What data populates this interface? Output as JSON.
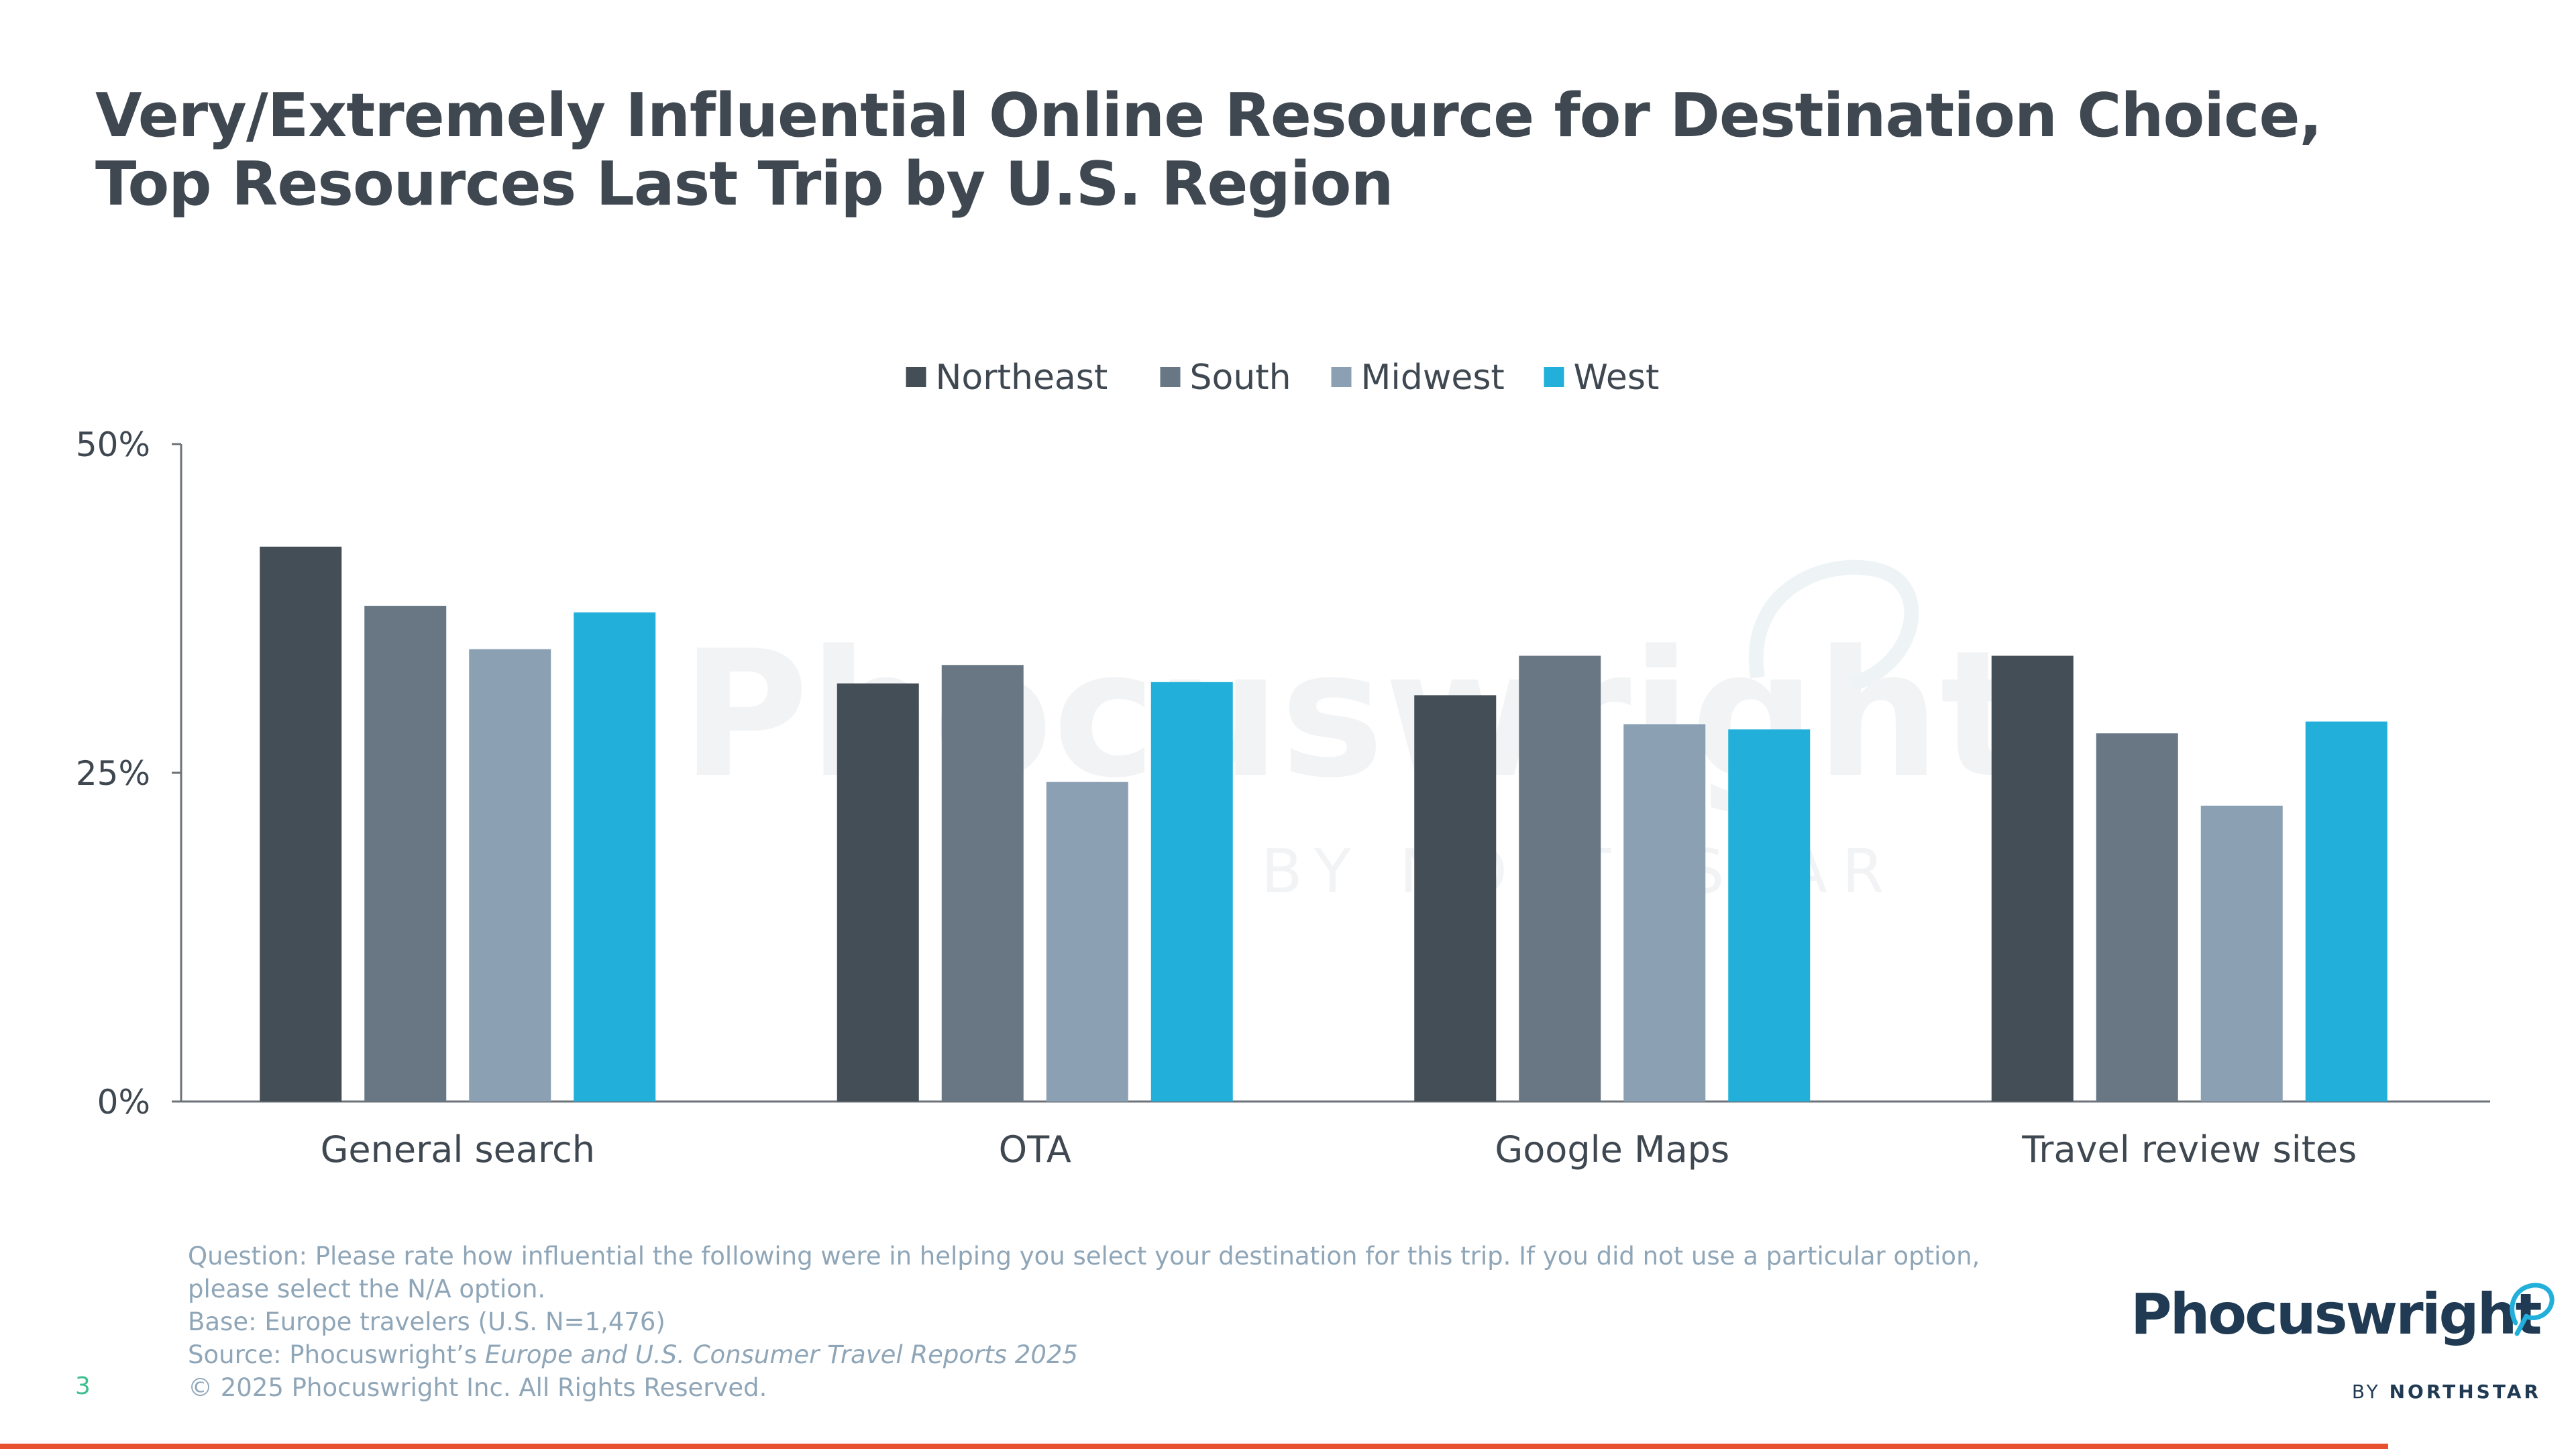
{
  "title": {
    "line1": "Very/Extremely Influential Online Resource for Destination Choice,",
    "line2": "Top Resources Last Trip by U.S. Region"
  },
  "watermark": {
    "main": "Phocuswright",
    "sub": "BY NORTHSTAR"
  },
  "chart_data": {
    "type": "bar",
    "categories": [
      "General search",
      "OTA",
      "Google Maps",
      "Travel review sites"
    ],
    "series": [
      {
        "name": "Northeast",
        "color": "#444e56",
        "values": [
          42.2,
          31.8,
          30.9,
          33.9
        ]
      },
      {
        "name": "South",
        "color": "#687783",
        "values": [
          37.7,
          33.2,
          33.9,
          28.0
        ]
      },
      {
        "name": "Midwest",
        "color": "#8ba1b3",
        "values": [
          34.4,
          24.3,
          28.7,
          22.5
        ]
      },
      {
        "name": "West",
        "color": "#22b0da",
        "values": [
          37.2,
          31.9,
          28.3,
          28.9
        ]
      }
    ],
    "yticks": [
      "0%",
      "25%",
      "50%"
    ],
    "ylim": [
      0,
      50
    ],
    "legend_position": "top-center",
    "grid": false
  },
  "footnotes": {
    "question": "Question: Please rate how influential the following were in helping you select your destination for this trip. If you did not use a particular option, please select the N/A option.",
    "base": "Base: Europe travelers (U.S. N=1,476)",
    "source_prefix": "Source: Phocuswright’s ",
    "source_title": "Europe and U.S. Consumer Travel Reports 2025",
    "copyright": "© 2025 Phocuswright Inc. All Rights Reserved."
  },
  "page_number": "3",
  "logo": {
    "word": "Phocuswright",
    "by": "BY",
    "brand": "NORTHSTAR",
    "icon": "speech-bubble-icon"
  },
  "colors": {
    "accent_rule": "#e8512f",
    "title": "#3f4851",
    "footnote": "#8fa6b8"
  }
}
